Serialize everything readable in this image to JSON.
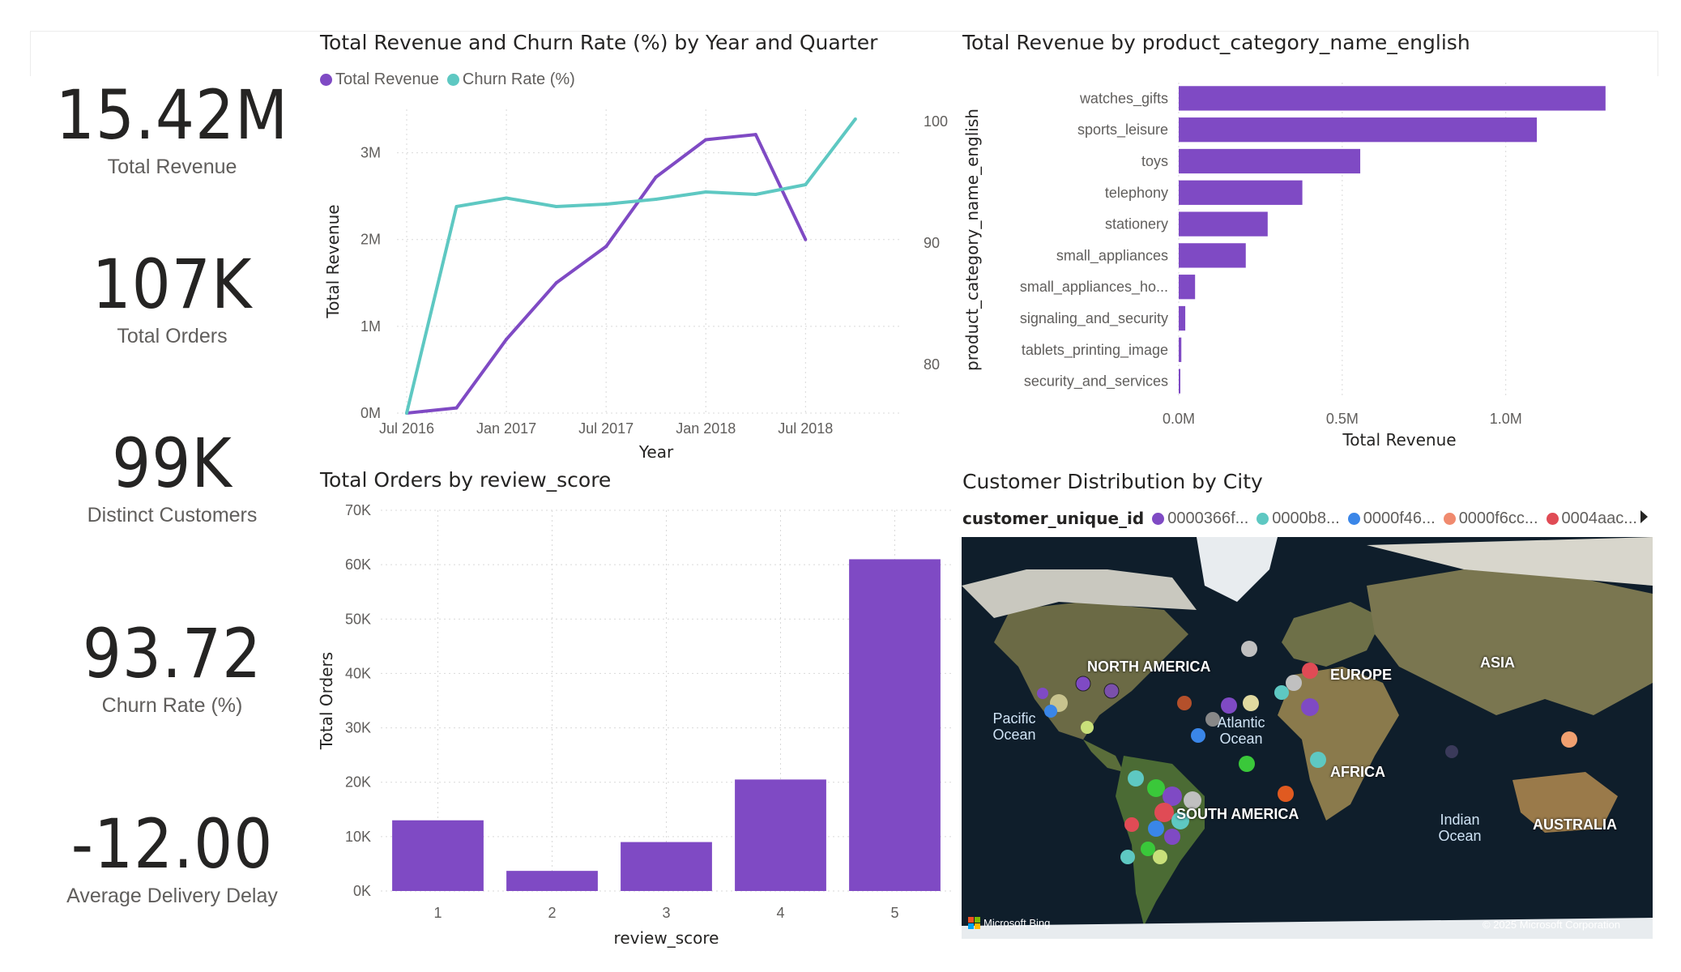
{
  "kpis": [
    {
      "value": "15.42M",
      "label": "Total Revenue"
    },
    {
      "value": "107K",
      "label": "Total Orders"
    },
    {
      "value": "99K",
      "label": "Distinct Customers"
    },
    {
      "value": "93.72",
      "label": "Churn Rate (%)"
    },
    {
      "value": "-12.00",
      "label": "Average Delivery Delay"
    }
  ],
  "colors": {
    "purple": "#7f4ac4",
    "teal": "#5ec8c2",
    "grid": "#d9d9d9"
  },
  "line_chart": {
    "title": "Total Revenue and Churn Rate (%) by Year and Quarter",
    "legend": [
      "Total Revenue",
      "Churn Rate (%)"
    ]
  },
  "bar_chart": {
    "title": "Total Revenue by product_category_name_english"
  },
  "column_chart": {
    "title": "Total Orders by review_score"
  },
  "map": {
    "title": "Customer Distribution by City",
    "legend_title": "customer_unique_id",
    "legend_items": [
      {
        "label": "0000366f...",
        "color": "#7f4ac4"
      },
      {
        "label": "0000b8...",
        "color": "#5ec8c2"
      },
      {
        "label": "0000f46...",
        "color": "#3a86e8"
      },
      {
        "label": "0000f6cc...",
        "color": "#f08a6e"
      },
      {
        "label": "0004aac...",
        "color": "#e04b55"
      }
    ],
    "labels": [
      "NORTH AMERICA",
      "EUROPE",
      "ASIA",
      "AFRICA",
      "SOUTH AMERICA",
      "AUSTRALIA"
    ],
    "oceans": [
      "Pacific Ocean",
      "Atlantic Ocean",
      "Indian Ocean"
    ],
    "brand": "Microsoft Bing",
    "copyright": "© 2025 Microsoft Corporation"
  },
  "chart_data": [
    {
      "type": "line",
      "title": "Total Revenue and Churn Rate (%) by Year and Quarter",
      "xlabel": "Year",
      "x_ticks": [
        "Jul 2016",
        "Jan 2017",
        "Jul 2017",
        "Jan 2018",
        "Jul 2018"
      ],
      "x": [
        "2016 Q3",
        "2016 Q4",
        "2017 Q1",
        "2017 Q2",
        "2017 Q3",
        "2017 Q4",
        "2018 Q1",
        "2018 Q2",
        "2018 Q3",
        "2018 Q4"
      ],
      "series": [
        {
          "name": "Total Revenue",
          "axis": "left",
          "ylabel": "Total Revenue",
          "values": [
            0,
            60000,
            850000,
            1500000,
            1920000,
            2720000,
            3150000,
            3210000,
            2000000,
            null
          ]
        },
        {
          "name": "Churn Rate (%)",
          "axis": "right",
          "ylabel": "Churn Rate (%)",
          "values": [
            76,
            93,
            93.7,
            93,
            93.2,
            93.6,
            94.2,
            94,
            94.8,
            100.2
          ]
        }
      ],
      "y_left": {
        "ticks": [
          "0M",
          "1M",
          "2M",
          "3M"
        ],
        "range": [
          0,
          3500000
        ]
      },
      "y_right": {
        "ticks": [
          "80",
          "90",
          "100"
        ],
        "range": [
          76,
          101
        ]
      },
      "legend": "top-left",
      "grid": true
    },
    {
      "type": "bar",
      "orientation": "horizontal",
      "title": "Total Revenue by product_category_name_english",
      "categories": [
        "watches_gifts",
        "sports_leisure",
        "toys",
        "telephony",
        "stationery",
        "small_appliances",
        "small_appliances_ho...",
        "signaling_and_security",
        "tablets_printing_image",
        "security_and_services"
      ],
      "values": [
        1305000,
        1095000,
        555000,
        378000,
        272000,
        205000,
        50000,
        20000,
        8000,
        3000
      ],
      "xlabel": "Total Revenue",
      "ylabel": "product_category_name_english",
      "x_ticks": [
        "0.0M",
        "0.5M",
        "1.0M"
      ],
      "xlim": [
        0,
        1350000
      ],
      "grid": true
    },
    {
      "type": "bar",
      "title": "Total Orders by review_score",
      "categories": [
        "1",
        "2",
        "3",
        "4",
        "5"
      ],
      "values": [
        13000,
        3700,
        9000,
        20500,
        61000
      ],
      "xlabel": "review_score",
      "ylabel": "Total Orders",
      "y_ticks": [
        "0K",
        "10K",
        "20K",
        "30K",
        "40K",
        "50K",
        "60K",
        "70K"
      ],
      "ylim": [
        0,
        70000
      ],
      "grid": true
    }
  ]
}
